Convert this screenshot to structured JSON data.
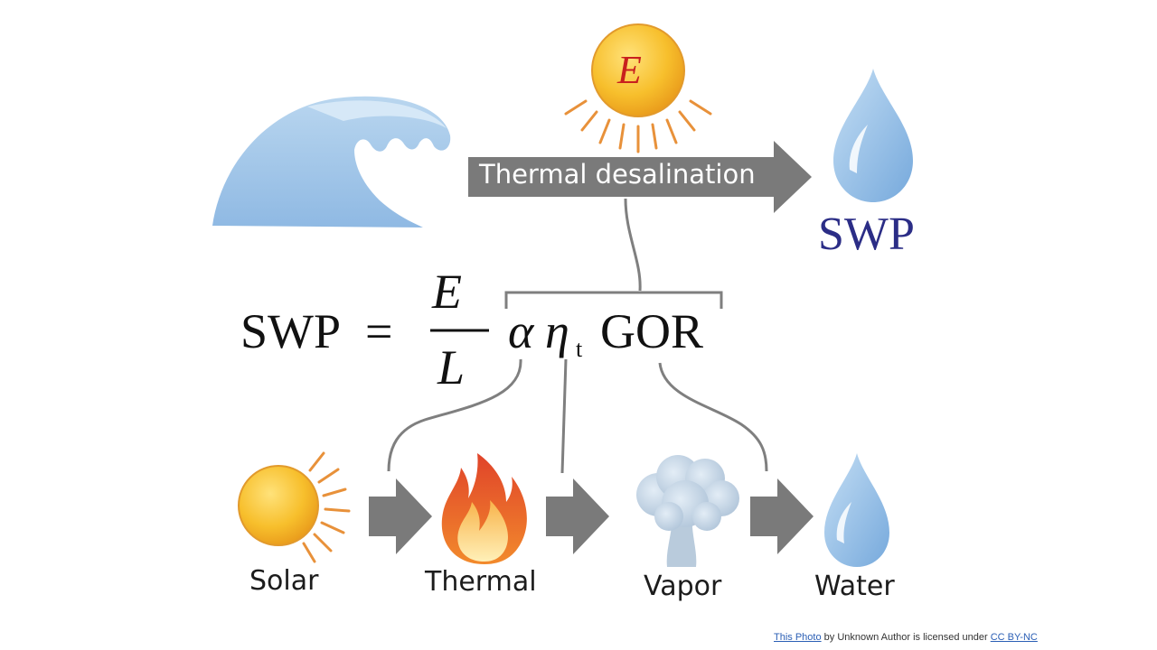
{
  "diagram": {
    "sun_symbol": "E",
    "process_label": "Thermal desalination",
    "output_label": "SWP",
    "equation": {
      "lhs": "SWP",
      "equals": "=",
      "numerator": "E",
      "denominator": "L",
      "alpha": "α",
      "eta": "η",
      "eta_subscript": "t",
      "gor": "GOR"
    },
    "stages": [
      {
        "label": "Solar",
        "icon": "sun-icon"
      },
      {
        "label": "Thermal",
        "icon": "flame-icon"
      },
      {
        "label": "Vapor",
        "icon": "steam-cloud-icon"
      },
      {
        "label": "Water",
        "icon": "water-drop-icon"
      }
    ]
  },
  "credit": {
    "photo_link": "This Photo",
    "middle_text": " by Unknown Author is licensed under ",
    "license_link": "CC BY-NC"
  },
  "colors": {
    "arrow": "#7a7a7a",
    "sun": "#f5b21b",
    "sun_rays": "#e8913a",
    "wave": "#9dc3e6",
    "drop": "#8fbde8",
    "swp_text": "#2b2d86",
    "e_text": "#c8201e",
    "connector": "#7f7f7f"
  }
}
